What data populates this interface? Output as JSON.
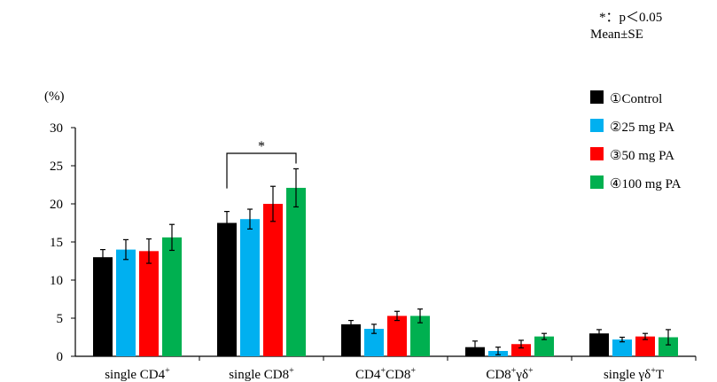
{
  "notes": {
    "significance": "*：p＜0.05",
    "stat": "Mean±SE"
  },
  "chart_data": {
    "type": "bar",
    "ylabel": "(%)",
    "ylim": [
      0,
      30
    ],
    "yticks": [
      0,
      5,
      10,
      15,
      20,
      25,
      30
    ],
    "grid": false,
    "legend_position": "top-right",
    "categories": [
      {
        "base": "single CD4",
        "sup": "+"
      },
      {
        "base": "single CD8",
        "sup": "+"
      },
      {
        "base": "CD4",
        "sup": "+",
        "base2": "CD8",
        "sup2": "+"
      },
      {
        "base": "CD8",
        "sup": "+",
        "base2": "γδ",
        "sup2": "+"
      },
      {
        "base": "single γδ",
        "sup": "+",
        "base2": "T",
        "sup2": ""
      }
    ],
    "series": [
      {
        "name": "①Control",
        "color": "#000000",
        "values": [
          13.0,
          17.5,
          4.2,
          1.2,
          3.0
        ],
        "errors": [
          1.0,
          1.5,
          0.5,
          0.8,
          0.5
        ]
      },
      {
        "name": "②25 mg PA",
        "color": "#00B0F0",
        "values": [
          14.0,
          18.0,
          3.6,
          0.7,
          2.2
        ],
        "errors": [
          1.3,
          1.3,
          0.6,
          0.5,
          0.3
        ]
      },
      {
        "name": "③50 mg PA",
        "color": "#FF0000",
        "values": [
          13.8,
          20.0,
          5.3,
          1.6,
          2.6
        ],
        "errors": [
          1.6,
          2.3,
          0.6,
          0.5,
          0.4
        ]
      },
      {
        "name": "④100 mg PA",
        "color": "#00B050",
        "values": [
          15.6,
          22.1,
          5.3,
          2.6,
          2.5
        ],
        "errors": [
          1.7,
          2.5,
          0.9,
          0.4,
          1.0
        ]
      }
    ],
    "annotations": [
      {
        "text": "*",
        "category_index": 1,
        "from_series": 0,
        "to_series": 3
      }
    ]
  }
}
